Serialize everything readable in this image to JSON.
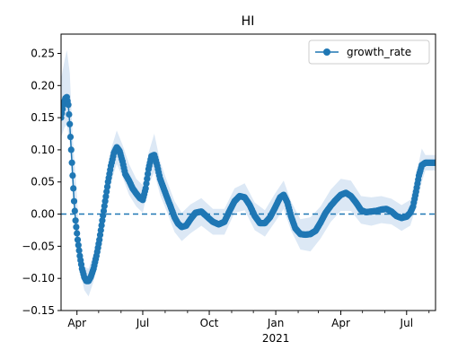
{
  "chart_data": {
    "type": "line",
    "title": "HI",
    "xlabel": "",
    "ylabel": "",
    "x_unit": "date",
    "xlim": [
      "2020-03-10",
      "2021-08-10"
    ],
    "ylim": [
      -0.15,
      0.28
    ],
    "y_ticks": [
      -0.15,
      -0.1,
      -0.05,
      0.0,
      0.05,
      0.1,
      0.15,
      0.2,
      0.25
    ],
    "y_tick_labels": [
      "−0.15",
      "−0.10",
      "−0.05",
      "0.00",
      "0.05",
      "0.10",
      "0.15",
      "0.20",
      "0.25"
    ],
    "x_major_ticks": [
      {
        "date": "2020-04-01",
        "label": "Apr"
      },
      {
        "date": "2020-07-01",
        "label": "Jul"
      },
      {
        "date": "2020-10-01",
        "label": "Oct"
      },
      {
        "date": "2021-01-01",
        "label": "Jan"
      },
      {
        "date": "2021-04-01",
        "label": "Apr"
      },
      {
        "date": "2021-07-01",
        "label": "Jul"
      }
    ],
    "x_minor_ticks": [
      "2020-05-01",
      "2020-06-01",
      "2020-08-01",
      "2020-09-01",
      "2020-11-01",
      "2020-12-01",
      "2021-02-01",
      "2021-03-01",
      "2021-05-01",
      "2021-06-01",
      "2021-08-01"
    ],
    "year_label": {
      "date": "2021-01-01",
      "label": "2021"
    },
    "grid": false,
    "legend": {
      "position": "top-right",
      "entries": [
        "growth_rate"
      ]
    },
    "reference_line": {
      "y": 0.0,
      "style": "dashed"
    },
    "colors": {
      "line": "#1f77b4",
      "band": "#dce8f5"
    },
    "series": [
      {
        "name": "growth_rate",
        "marker": "circle",
        "points": [
          [
            "2020-03-10",
            0.15
          ],
          [
            "2020-03-13",
            0.17
          ],
          [
            "2020-03-16",
            0.18
          ],
          [
            "2020-03-18",
            0.182
          ],
          [
            "2020-03-20",
            0.17
          ],
          [
            "2020-03-22",
            0.14
          ],
          [
            "2020-03-24",
            0.1
          ],
          [
            "2020-03-26",
            0.06
          ],
          [
            "2020-03-28",
            0.02
          ],
          [
            "2020-03-30",
            -0.01
          ],
          [
            "2020-04-02",
            -0.04
          ],
          [
            "2020-04-05",
            -0.065
          ],
          [
            "2020-04-08",
            -0.085
          ],
          [
            "2020-04-11",
            -0.098
          ],
          [
            "2020-04-14",
            -0.104
          ],
          [
            "2020-04-17",
            -0.104
          ],
          [
            "2020-04-20",
            -0.098
          ],
          [
            "2020-04-24",
            -0.085
          ],
          [
            "2020-04-28",
            -0.065
          ],
          [
            "2020-05-02",
            -0.04
          ],
          [
            "2020-05-06",
            -0.01
          ],
          [
            "2020-05-10",
            0.02
          ],
          [
            "2020-05-14",
            0.05
          ],
          [
            "2020-05-18",
            0.075
          ],
          [
            "2020-05-22",
            0.095
          ],
          [
            "2020-05-26",
            0.104
          ],
          [
            "2020-05-30",
            0.098
          ],
          [
            "2020-06-03",
            0.082
          ],
          [
            "2020-06-07",
            0.062
          ],
          [
            "2020-06-12",
            0.052
          ],
          [
            "2020-06-17",
            0.04
          ],
          [
            "2020-06-22",
            0.032
          ],
          [
            "2020-06-27",
            0.025
          ],
          [
            "2020-07-01",
            0.022
          ],
          [
            "2020-07-05",
            0.04
          ],
          [
            "2020-07-09",
            0.07
          ],
          [
            "2020-07-13",
            0.09
          ],
          [
            "2020-07-17",
            0.092
          ],
          [
            "2020-07-21",
            0.075
          ],
          [
            "2020-07-25",
            0.055
          ],
          [
            "2020-07-30",
            0.04
          ],
          [
            "2020-08-04",
            0.025
          ],
          [
            "2020-08-09",
            0.01
          ],
          [
            "2020-08-14",
            -0.005
          ],
          [
            "2020-08-19",
            -0.015
          ],
          [
            "2020-08-24",
            -0.02
          ],
          [
            "2020-08-30",
            -0.018
          ],
          [
            "2020-09-05",
            -0.008
          ],
          [
            "2020-09-12",
            0.002
          ],
          [
            "2020-09-20",
            0.004
          ],
          [
            "2020-09-28",
            -0.004
          ],
          [
            "2020-10-06",
            -0.012
          ],
          [
            "2020-10-14",
            -0.016
          ],
          [
            "2020-10-22",
            -0.012
          ],
          [
            "2020-10-29",
            0.005
          ],
          [
            "2020-11-05",
            0.02
          ],
          [
            "2020-11-12",
            0.028
          ],
          [
            "2020-11-19",
            0.026
          ],
          [
            "2020-11-26",
            0.014
          ],
          [
            "2020-12-03",
            -0.003
          ],
          [
            "2020-12-10",
            -0.014
          ],
          [
            "2020-12-17",
            -0.014
          ],
          [
            "2020-12-24",
            -0.005
          ],
          [
            "2020-12-31",
            0.01
          ],
          [
            "2021-01-07",
            0.026
          ],
          [
            "2021-01-12",
            0.03
          ],
          [
            "2021-01-17",
            0.018
          ],
          [
            "2021-01-22",
            -0.003
          ],
          [
            "2021-01-28",
            -0.022
          ],
          [
            "2021-02-04",
            -0.031
          ],
          [
            "2021-02-11",
            -0.032
          ],
          [
            "2021-02-18",
            -0.031
          ],
          [
            "2021-02-25",
            -0.026
          ],
          [
            "2021-03-04",
            -0.013
          ],
          [
            "2021-03-11",
            0.002
          ],
          [
            "2021-03-18",
            0.013
          ],
          [
            "2021-03-25",
            0.022
          ],
          [
            "2021-04-01",
            0.03
          ],
          [
            "2021-04-08",
            0.033
          ],
          [
            "2021-04-15",
            0.028
          ],
          [
            "2021-04-22",
            0.018
          ],
          [
            "2021-04-29",
            0.006
          ],
          [
            "2021-05-06",
            0.003
          ],
          [
            "2021-05-13",
            0.004
          ],
          [
            "2021-05-20",
            0.005
          ],
          [
            "2021-05-27",
            0.007
          ],
          [
            "2021-06-03",
            0.008
          ],
          [
            "2021-06-10",
            0.004
          ],
          [
            "2021-06-17",
            -0.003
          ],
          [
            "2021-06-24",
            -0.006
          ],
          [
            "2021-07-01",
            -0.004
          ],
          [
            "2021-07-06",
            0.002
          ],
          [
            "2021-07-10",
            0.012
          ],
          [
            "2021-07-14",
            0.035
          ],
          [
            "2021-07-18",
            0.06
          ],
          [
            "2021-07-22",
            0.076
          ],
          [
            "2021-07-27",
            0.08
          ],
          [
            "2021-08-01",
            0.08
          ],
          [
            "2021-08-06",
            0.08
          ],
          [
            "2021-08-10",
            0.08
          ]
        ],
        "band": [
          [
            "2020-03-10",
            0.12,
            0.21
          ],
          [
            "2020-03-15",
            0.135,
            0.24
          ],
          [
            "2020-03-18",
            0.14,
            0.255
          ],
          [
            "2020-03-22",
            0.11,
            0.22
          ],
          [
            "2020-03-26",
            0.035,
            0.12
          ],
          [
            "2020-03-30",
            -0.03,
            0.06
          ],
          [
            "2020-04-05",
            -0.085,
            -0.04
          ],
          [
            "2020-04-11",
            -0.118,
            -0.082
          ],
          [
            "2020-04-17",
            -0.128,
            -0.085
          ],
          [
            "2020-04-24",
            -0.105,
            -0.062
          ],
          [
            "2020-05-02",
            -0.062,
            -0.018
          ],
          [
            "2020-05-10",
            -0.005,
            0.045
          ],
          [
            "2020-05-18",
            0.05,
            0.1
          ],
          [
            "2020-05-26",
            0.078,
            0.13
          ],
          [
            "2020-06-03",
            0.058,
            0.108
          ],
          [
            "2020-06-12",
            0.03,
            0.078
          ],
          [
            "2020-06-22",
            0.012,
            0.055
          ],
          [
            "2020-07-01",
            0.002,
            0.045
          ],
          [
            "2020-07-09",
            0.045,
            0.095
          ],
          [
            "2020-07-17",
            0.065,
            0.125
          ],
          [
            "2020-07-25",
            0.03,
            0.082
          ],
          [
            "2020-08-04",
            0.002,
            0.05
          ],
          [
            "2020-08-14",
            -0.028,
            0.02
          ],
          [
            "2020-08-24",
            -0.042,
            0.002
          ],
          [
            "2020-09-05",
            -0.03,
            0.015
          ],
          [
            "2020-09-20",
            -0.018,
            0.025
          ],
          [
            "2020-10-06",
            -0.032,
            0.008
          ],
          [
            "2020-10-22",
            -0.032,
            0.008
          ],
          [
            "2020-11-05",
            0.002,
            0.04
          ],
          [
            "2020-11-19",
            0.006,
            0.048
          ],
          [
            "2020-12-03",
            -0.025,
            0.018
          ],
          [
            "2020-12-17",
            -0.035,
            0.006
          ],
          [
            "2020-12-31",
            -0.012,
            0.032
          ],
          [
            "2021-01-12",
            0.008,
            0.052
          ],
          [
            "2021-01-22",
            -0.025,
            0.02
          ],
          [
            "2021-02-04",
            -0.055,
            -0.008
          ],
          [
            "2021-02-18",
            -0.058,
            -0.005
          ],
          [
            "2021-03-04",
            -0.038,
            0.012
          ],
          [
            "2021-03-18",
            -0.012,
            0.038
          ],
          [
            "2021-04-01",
            0.005,
            0.055
          ],
          [
            "2021-04-15",
            0.005,
            0.052
          ],
          [
            "2021-04-29",
            -0.015,
            0.028
          ],
          [
            "2021-05-13",
            -0.018,
            0.026
          ],
          [
            "2021-05-27",
            -0.014,
            0.028
          ],
          [
            "2021-06-10",
            -0.016,
            0.024
          ],
          [
            "2021-06-24",
            -0.026,
            0.014
          ],
          [
            "2021-07-06",
            -0.018,
            0.022
          ],
          [
            "2021-07-14",
            0.01,
            0.06
          ],
          [
            "2021-07-22",
            0.05,
            0.102
          ],
          [
            "2021-07-27",
            0.068,
            0.092
          ],
          [
            "2021-08-10",
            0.068,
            0.092
          ]
        ]
      }
    ]
  }
}
